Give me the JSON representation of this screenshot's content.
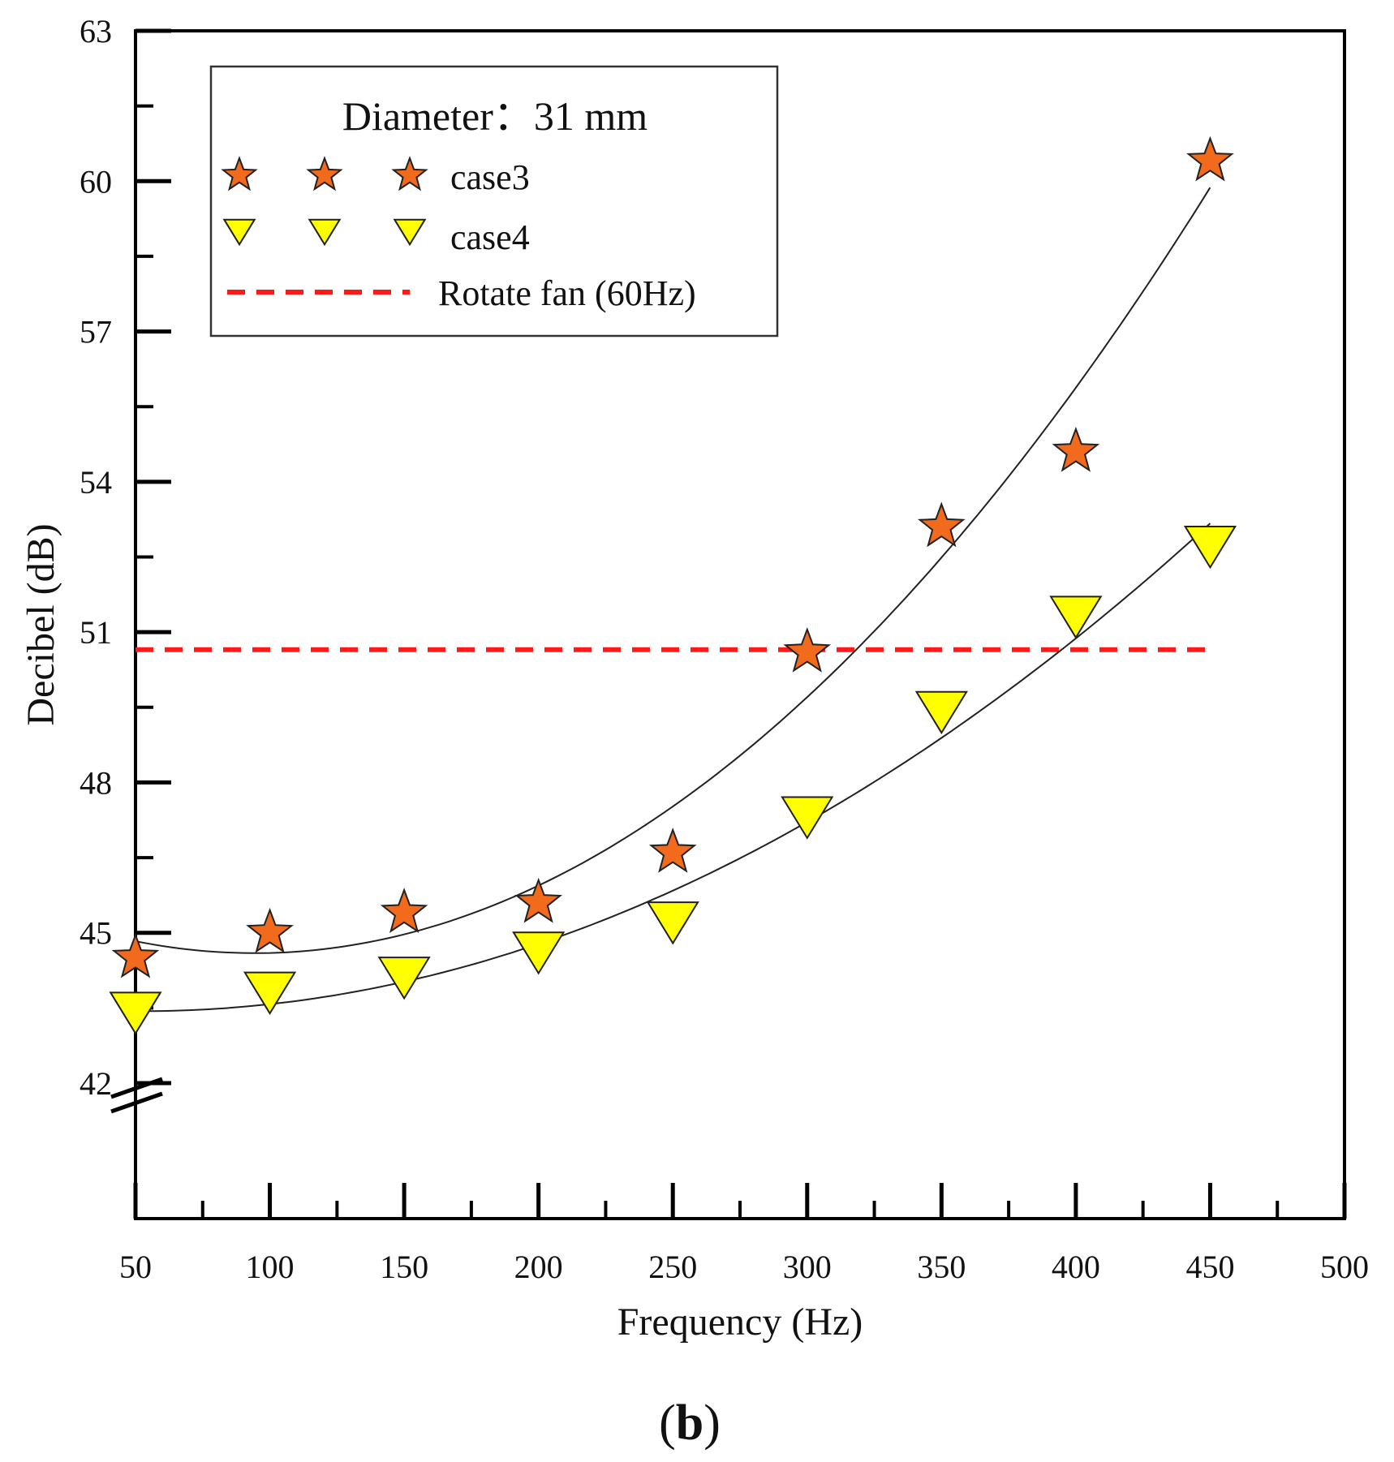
{
  "chart_data": {
    "type": "scatter",
    "panel_label": {
      "open": "(",
      "letter": "b",
      "close": ")"
    },
    "xlabel": "Frequency (Hz)",
    "ylabel": "Decibel (dB)",
    "xlim": [
      50,
      500
    ],
    "ylim": [
      42,
      63
    ],
    "x_ticks": [
      50,
      100,
      150,
      200,
      250,
      300,
      350,
      400,
      450,
      500
    ],
    "y_ticks": [
      42,
      45,
      48,
      51,
      54,
      57,
      60,
      63
    ],
    "x_tick_labels": [
      "50",
      "100",
      "150",
      "200",
      "250",
      "300",
      "350",
      "400",
      "450",
      "500"
    ],
    "y_tick_labels": [
      "42",
      "45",
      "48",
      "51",
      "54",
      "57",
      "60",
      "63"
    ],
    "axis_break": "y-axis break below 42",
    "legend": {
      "title": "Diameter：31 mm",
      "placement": "top-left",
      "entries": [
        "case3",
        "case4",
        "Rotate fan (60Hz)"
      ]
    },
    "series": [
      {
        "name": "case3",
        "marker": "star",
        "color": "#F26A1B",
        "x": [
          50,
          100,
          150,
          200,
          250,
          300,
          350,
          400,
          450
        ],
        "y": [
          44.5,
          45.0,
          45.4,
          45.6,
          46.6,
          50.6,
          53.1,
          54.6,
          60.4
        ],
        "fit": {
          "type": "quadratic",
          "x_range": [
            50,
            450
          ]
        }
      },
      {
        "name": "case4",
        "marker": "triangle-down",
        "color": "#FFFF00",
        "x": [
          50,
          100,
          150,
          200,
          250,
          300,
          350,
          400,
          450
        ],
        "y": [
          43.4,
          43.8,
          44.1,
          44.6,
          45.2,
          47.3,
          49.4,
          51.3,
          52.7
        ],
        "fit": {
          "type": "quadratic",
          "x_range": [
            50,
            450
          ]
        }
      }
    ],
    "reference_line": {
      "name": "Rotate fan (60Hz)",
      "y": 50.65,
      "x_range": [
        50,
        450
      ],
      "color": "#FF1A1A",
      "style": "dashed"
    }
  }
}
